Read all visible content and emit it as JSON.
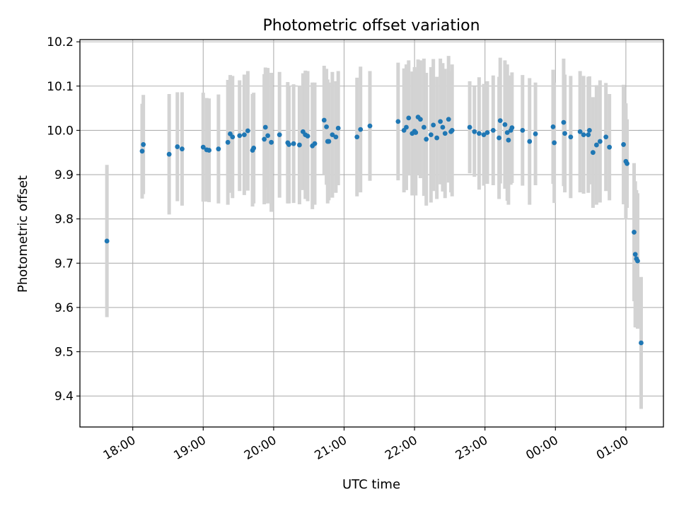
{
  "chart_data": {
    "type": "scatter",
    "title": "Photometric offset variation",
    "xlabel": "UTC time",
    "ylabel": "Photometric offset",
    "grid": true,
    "x_is_time": true,
    "x_ticks": [
      "18:00",
      "19:00",
      "20:00",
      "21:00",
      "22:00",
      "23:00",
      "00:00",
      "01:00"
    ],
    "y_ticks": [
      "9.4",
      "9.5",
      "9.6",
      "9.7",
      "9.8",
      "9.9",
      "10.0",
      "10.1",
      "10.2"
    ],
    "xlim": [
      "17:15",
      "01:32"
    ],
    "ylim": [
      9.33,
      10.205
    ],
    "colors": {
      "point": "#1f77b4",
      "errorbar": "#d3d3d3",
      "grid": "#b0b0b0"
    },
    "series": [
      {
        "x": [
          "17:38",
          "18:08",
          "18:09",
          "18:31",
          "18:38",
          "18:42",
          "19:00",
          "19:03",
          "19:05",
          "19:13",
          "19:21",
          "19:23",
          "19:25",
          "19:31",
          "19:35",
          "19:38",
          "19:42",
          "19:43",
          "19:52",
          "19:53",
          "19:55",
          "19:58",
          "20:05",
          "20:12",
          "20:13",
          "20:17",
          "20:22",
          "20:25",
          "20:27",
          "20:29",
          "20:33",
          "20:35",
          "20:43",
          "20:45",
          "20:46",
          "20:47",
          "20:50",
          "20:53",
          "20:55",
          "21:11",
          "21:14",
          "21:22",
          "21:46",
          "21:51",
          "21:53",
          "21:55",
          "21:58",
          "22:00",
          "22:01",
          "22:03",
          "22:05",
          "22:08",
          "22:10",
          "22:14",
          "22:16",
          "22:19",
          "22:22",
          "22:24",
          "22:26",
          "22:29",
          "22:31",
          "22:32",
          "22:47",
          "22:51",
          "22:55",
          "22:59",
          "23:02",
          "23:07",
          "23:12",
          "23:13",
          "23:17",
          "23:19",
          "23:20",
          "23:22",
          "23:23",
          "23:32",
          "23:38",
          "23:43",
          "23:58",
          "23:59",
          "00:07",
          "00:08",
          "00:13",
          "00:21",
          "00:24",
          "00:28",
          "00:29",
          "00:32",
          "00:35",
          "00:38",
          "00:43",
          "00:46",
          "00:58",
          "01:00",
          "01:01",
          "01:07",
          "01:08",
          "01:09",
          "01:10",
          "01:13"
        ],
        "y": [
          9.75,
          9.953,
          9.968,
          9.946,
          9.963,
          9.958,
          9.962,
          9.956,
          9.955,
          9.958,
          9.973,
          9.992,
          9.985,
          9.988,
          9.99,
          9.999,
          9.955,
          9.96,
          9.98,
          10.007,
          9.988,
          9.973,
          9.99,
          9.972,
          9.968,
          9.97,
          9.967,
          9.997,
          9.99,
          9.987,
          9.965,
          9.97,
          10.023,
          10.008,
          9.975,
          9.975,
          9.99,
          9.985,
          10.005,
          9.985,
          10.002,
          10.01,
          10.02,
          10.0,
          10.007,
          10.028,
          9.993,
          9.998,
          9.995,
          10.03,
          10.025,
          10.007,
          9.98,
          9.99,
          10.012,
          9.983,
          10.02,
          10.007,
          9.993,
          10.025,
          9.997,
          10.0,
          10.007,
          9.997,
          9.993,
          9.99,
          9.995,
          10.0,
          9.983,
          10.022,
          10.013,
          9.995,
          9.978,
          10.0,
          10.006,
          10.0,
          9.975,
          9.992,
          10.008,
          9.972,
          10.018,
          9.993,
          9.985,
          9.997,
          9.99,
          9.99,
          10.0,
          9.95,
          9.967,
          9.975,
          9.985,
          9.962,
          9.968,
          9.93,
          9.925,
          9.77,
          9.72,
          9.71,
          9.705,
          9.52
        ],
        "yerr": [
          0.172,
          0.107,
          0.112,
          0.136,
          0.123,
          0.128,
          0.123,
          0.117,
          0.117,
          0.123,
          0.141,
          0.133,
          0.138,
          0.125,
          0.136,
          0.135,
          0.127,
          0.125,
          0.147,
          0.135,
          0.153,
          0.157,
          0.142,
          0.137,
          0.133,
          0.134,
          0.134,
          0.132,
          0.145,
          0.147,
          0.143,
          0.138,
          0.123,
          0.131,
          0.14,
          0.133,
          0.142,
          0.126,
          0.129,
          0.134,
          0.142,
          0.124,
          0.133,
          0.14,
          0.142,
          0.13,
          0.14,
          0.145,
          0.142,
          0.13,
          0.133,
          0.155,
          0.15,
          0.153,
          0.149,
          0.138,
          0.142,
          0.145,
          0.146,
          0.143,
          0.137,
          0.149,
          0.104,
          0.102,
          0.127,
          0.115,
          0.116,
          0.124,
          0.138,
          0.142,
          0.145,
          0.154,
          0.146,
          0.123,
          0.125,
          0.125,
          0.143,
          0.116,
          0.129,
          0.136,
          0.144,
          0.133,
          0.138,
          0.137,
          0.133,
          0.131,
          0.122,
          0.125,
          0.135,
          0.138,
          0.122,
          0.12,
          0.135,
          0.131,
          0.1,
          0.156,
          0.165,
          0.155,
          0.153,
          0.149
        ]
      }
    ]
  }
}
